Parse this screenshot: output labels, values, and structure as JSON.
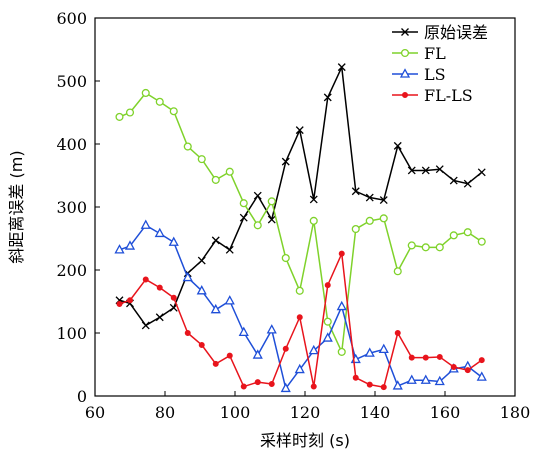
{
  "chart_data": {
    "type": "line",
    "title": "",
    "xlabel": "采样时刻 (s)",
    "ylabel": "斜距离误差 (m)",
    "xlim": [
      60,
      180
    ],
    "ylim": [
      0,
      600
    ],
    "xticks": [
      60,
      80,
      100,
      120,
      140,
      160,
      180
    ],
    "yticks": [
      0,
      100,
      200,
      300,
      400,
      500,
      600
    ],
    "grid": false,
    "legend": "top-right",
    "x": [
      67,
      70,
      74.5,
      78.5,
      82.5,
      86.5,
      90.5,
      94.5,
      98.5,
      102.5,
      106.5,
      110.5,
      114.5,
      118.5,
      122.5,
      126.5,
      130.5,
      134.5,
      138.5,
      142.5,
      146.5,
      150.5,
      154.5,
      158.5,
      162.5,
      166.5,
      170.5
    ],
    "series": [
      {
        "name": "原始误差",
        "color": "#000000",
        "marker": "x",
        "values": [
          152,
          147,
          112,
          125,
          140,
          195,
          215,
          247,
          232,
          283,
          318,
          280,
          372,
          422,
          312,
          474,
          522,
          325,
          315,
          311,
          397,
          358,
          358,
          360,
          342,
          337,
          355
        ]
      },
      {
        "name": "FL",
        "color": "#7fd22b",
        "marker": "circle-open",
        "values": [
          443,
          450,
          481,
          467,
          452,
          396,
          376,
          343,
          356,
          306,
          271,
          309,
          219,
          167,
          278,
          118,
          70,
          265,
          278,
          282,
          198,
          239,
          236,
          236,
          255,
          260,
          245
        ]
      },
      {
        "name": "LS",
        "color": "#1f4fd8",
        "marker": "triangle-open",
        "values": [
          232,
          238,
          271,
          258,
          244,
          188,
          167,
          137,
          151,
          101,
          65,
          105,
          12,
          42,
          72,
          92,
          142,
          58,
          68,
          74,
          16,
          25,
          25,
          23,
          43,
          47,
          30
        ]
      },
      {
        "name": "FL-LS",
        "color": "#e8141c",
        "marker": "dot",
        "values": [
          146,
          152,
          185,
          172,
          156,
          100,
          81,
          51,
          64,
          15,
          22,
          19,
          75,
          125,
          15,
          176,
          226,
          29,
          18,
          14,
          100,
          61,
          61,
          62,
          46,
          41,
          57
        ]
      }
    ]
  }
}
